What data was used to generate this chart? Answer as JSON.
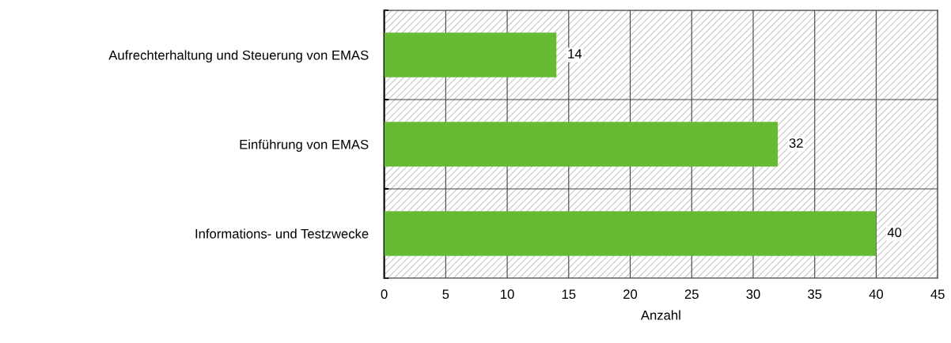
{
  "chart_data": {
    "type": "bar",
    "orientation": "horizontal",
    "categories": [
      "Aufrechterhaltung und Steuerung von EMAS",
      "Einführung von EMAS",
      "Informations- und Testzwecke"
    ],
    "values": [
      14,
      32,
      40
    ],
    "color": "#66bb33",
    "xlim": [
      0,
      45
    ],
    "xticks": [
      0,
      5,
      10,
      15,
      20,
      25,
      30,
      35,
      40,
      45
    ],
    "xlabel": "Anzahl",
    "grid": true,
    "data_labels": true
  }
}
